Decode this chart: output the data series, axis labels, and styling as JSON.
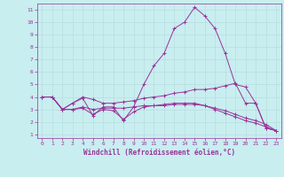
{
  "xlabel": "Windchill (Refroidissement éolien,°C)",
  "background_color": "#c8eef0",
  "grid_color": "#b8dde0",
  "line_color": "#993399",
  "xlim": [
    -0.5,
    23.5
  ],
  "ylim": [
    0.7,
    11.5
  ],
  "xticks": [
    0,
    1,
    2,
    3,
    4,
    5,
    6,
    7,
    8,
    9,
    10,
    11,
    12,
    13,
    14,
    15,
    16,
    17,
    18,
    19,
    20,
    21,
    22,
    23
  ],
  "yticks": [
    1,
    2,
    3,
    4,
    5,
    6,
    7,
    8,
    9,
    10,
    11
  ],
  "line1_x": [
    0,
    1,
    2,
    3,
    4,
    5,
    6,
    7,
    8,
    9,
    10,
    11,
    12,
    13,
    14,
    15,
    16,
    17,
    18,
    19,
    20,
    21,
    22,
    23
  ],
  "line1_y": [
    4.0,
    4.0,
    3.0,
    3.5,
    3.9,
    2.5,
    3.2,
    3.2,
    2.1,
    3.2,
    5.0,
    6.5,
    7.5,
    9.5,
    10.0,
    11.2,
    10.5,
    9.5,
    7.5,
    5.0,
    4.8,
    3.5,
    1.5,
    1.3
  ],
  "line2_x": [
    0,
    1,
    2,
    3,
    4,
    5,
    6,
    7,
    8,
    9,
    10,
    11,
    12,
    13,
    14,
    15,
    16,
    17,
    18,
    19,
    20,
    21,
    22,
    23
  ],
  "line2_y": [
    4.0,
    4.0,
    3.0,
    3.5,
    4.0,
    3.8,
    3.5,
    3.5,
    3.6,
    3.7,
    3.9,
    4.0,
    4.1,
    4.3,
    4.4,
    4.6,
    4.6,
    4.7,
    4.9,
    5.1,
    3.5,
    3.5,
    1.5,
    1.3
  ],
  "line3_x": [
    0,
    1,
    2,
    3,
    4,
    5,
    6,
    7,
    8,
    9,
    10,
    11,
    12,
    13,
    14,
    15,
    16,
    17,
    18,
    19,
    20,
    21,
    22,
    23
  ],
  "line3_y": [
    4.0,
    4.0,
    3.0,
    3.0,
    3.2,
    3.0,
    3.1,
    3.1,
    3.1,
    3.2,
    3.3,
    3.3,
    3.3,
    3.4,
    3.4,
    3.4,
    3.3,
    3.1,
    2.9,
    2.6,
    2.3,
    2.1,
    1.8,
    1.3
  ],
  "line4_x": [
    0,
    1,
    2,
    3,
    4,
    5,
    6,
    7,
    8,
    9,
    10,
    11,
    12,
    13,
    14,
    15,
    16,
    17,
    18,
    19,
    20,
    21,
    22,
    23
  ],
  "line4_y": [
    4.0,
    4.0,
    3.0,
    3.0,
    3.1,
    2.6,
    3.0,
    2.9,
    2.2,
    2.8,
    3.2,
    3.3,
    3.4,
    3.5,
    3.5,
    3.5,
    3.3,
    3.0,
    2.7,
    2.4,
    2.1,
    1.9,
    1.6,
    1.3
  ]
}
